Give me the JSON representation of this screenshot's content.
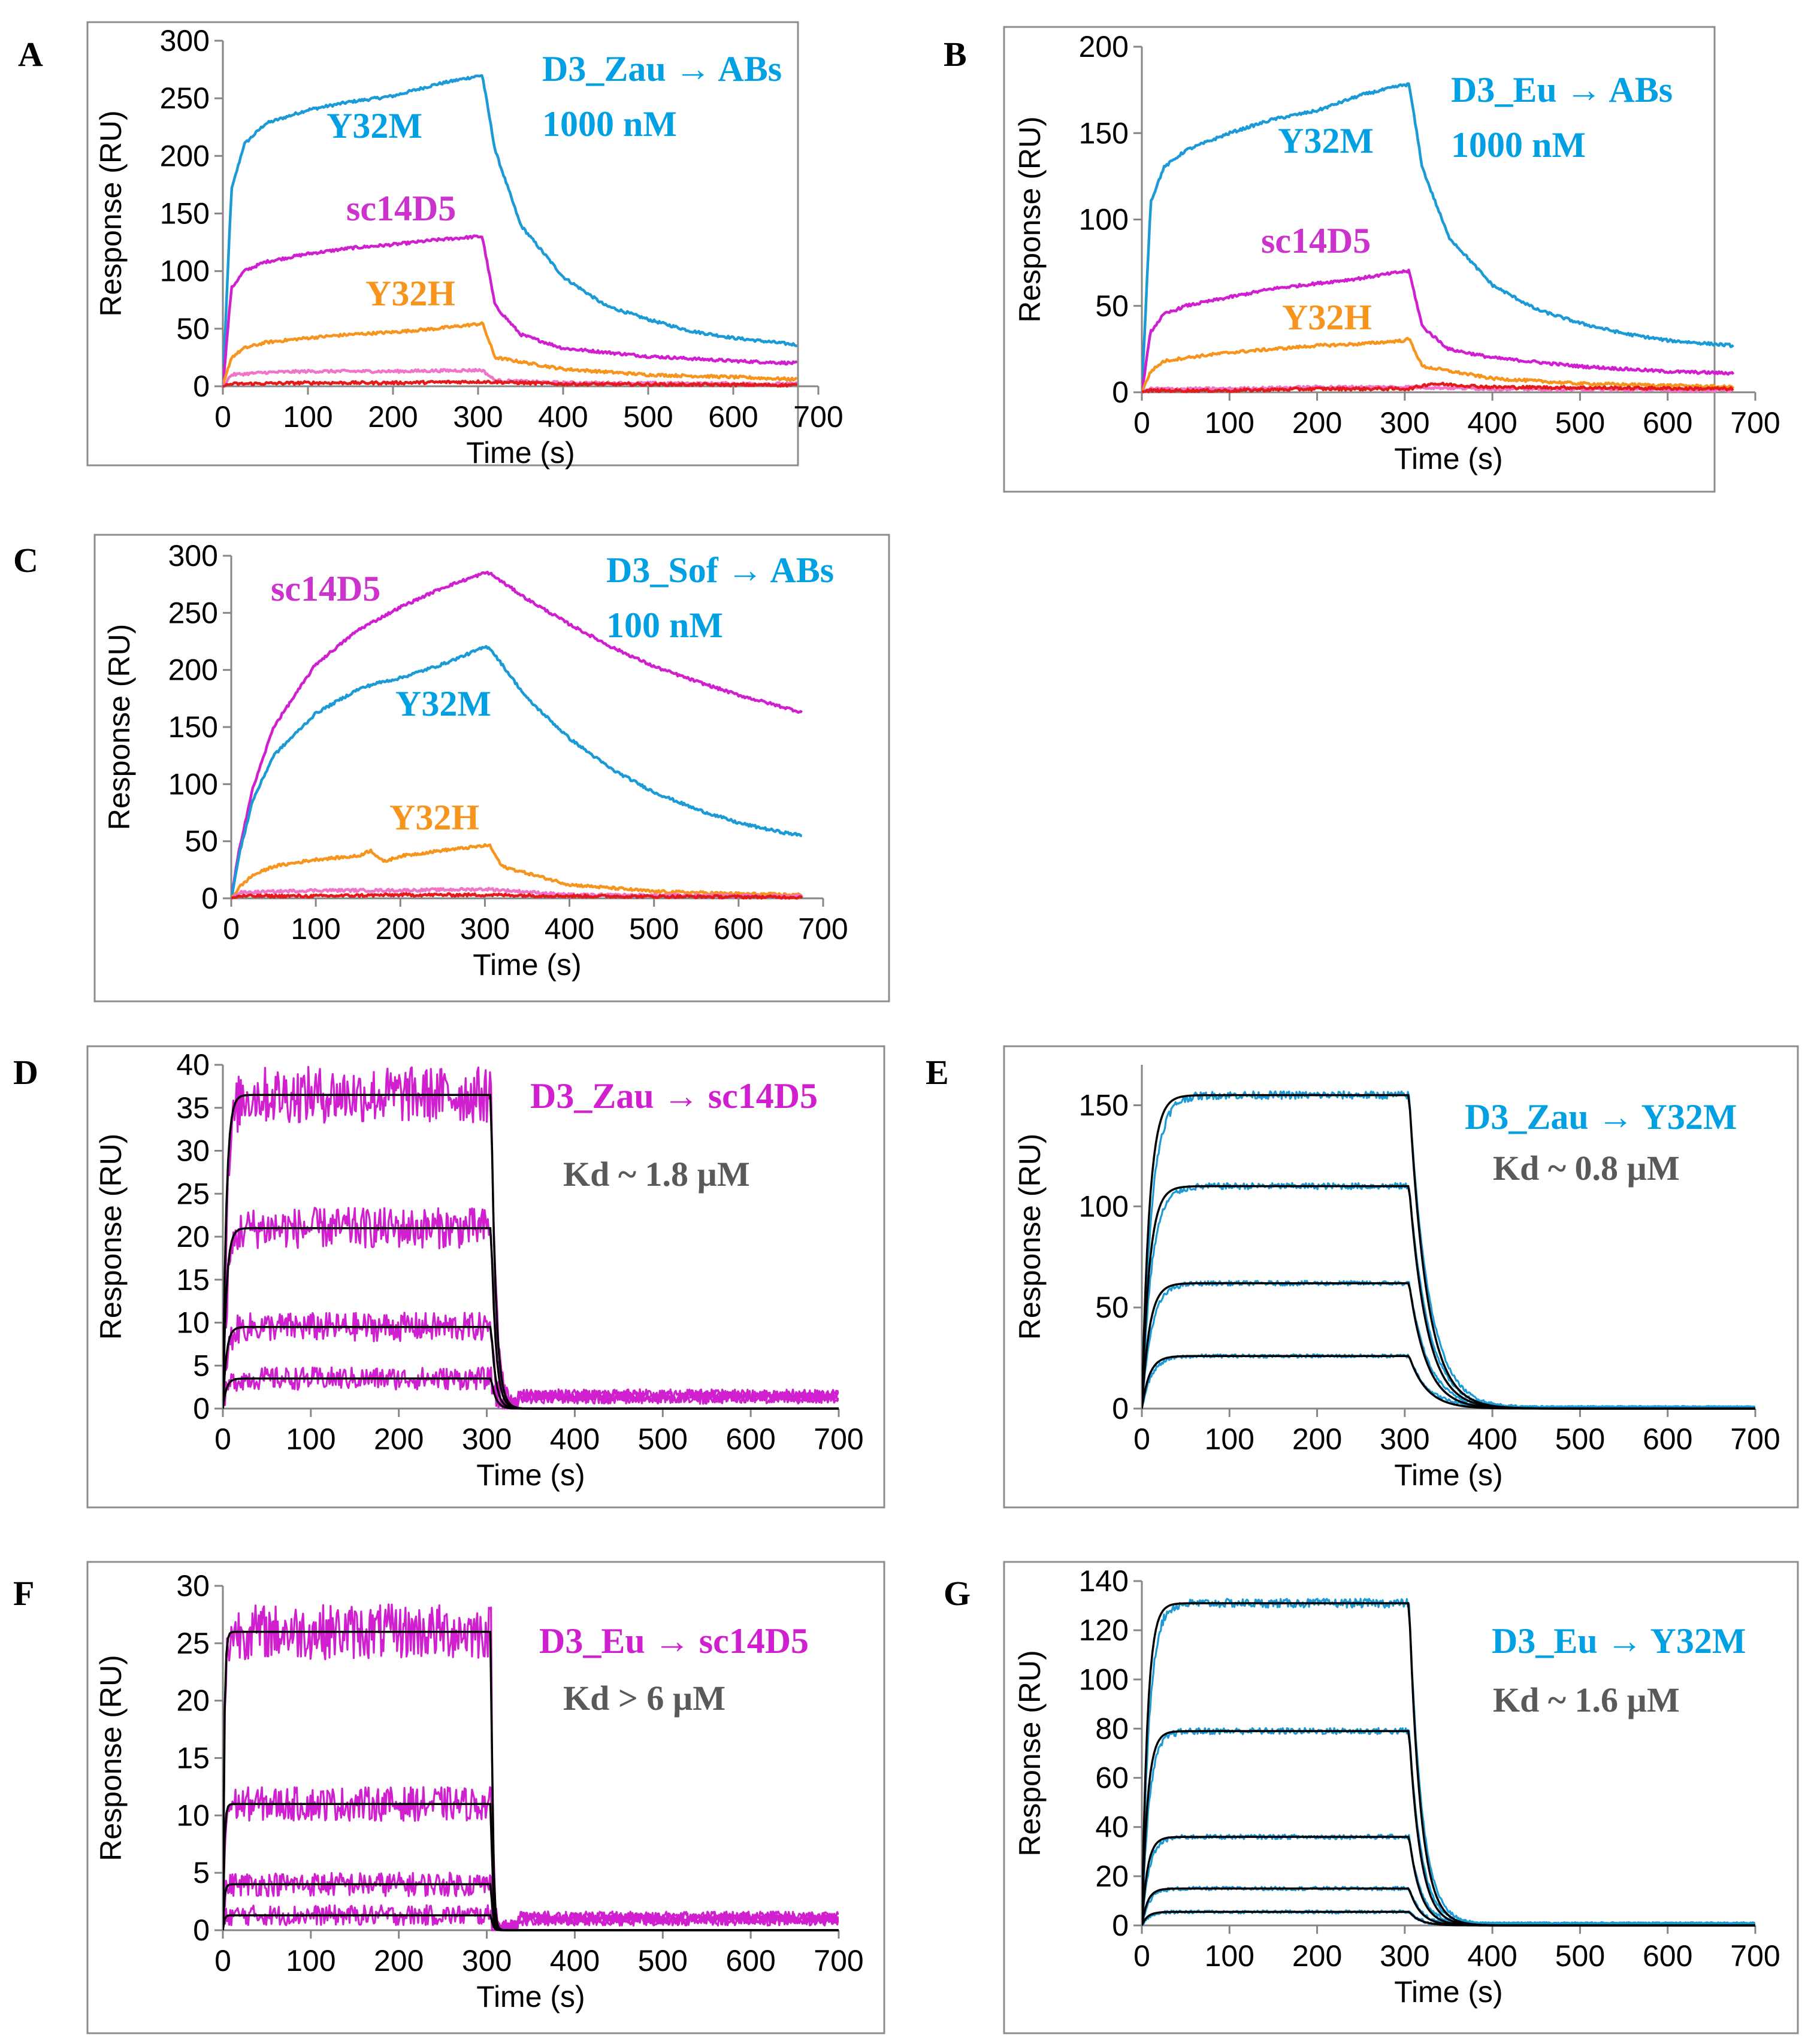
{
  "chart_data": [
    {
      "panel": "A",
      "type": "line",
      "xlabel": "Time (s)",
      "ylabel": "Response (RU)",
      "xlim": [
        0,
        700
      ],
      "ylim": [
        0,
        300
      ],
      "xticks": [
        "0",
        "100",
        "200",
        "300",
        "400",
        "500",
        "600",
        "700"
      ],
      "yticks": [
        "0",
        "50",
        "100",
        "150",
        "200",
        "250",
        "300"
      ],
      "title_lines": [
        "D3_Zau → ABs",
        "1000 nM"
      ],
      "title_color": "#00a0e3",
      "series": [
        {
          "name": "Y32M",
          "color": "#1c9ad6",
          "labeled": true,
          "t_end": 305,
          "t_max": 675,
          "x": [
            0,
            10,
            25,
            50,
            100,
            150,
            200,
            250,
            290,
            305,
            320,
            350,
            400,
            450,
            500,
            550,
            600,
            650,
            675
          ],
          "y": [
            0,
            170,
            210,
            228,
            240,
            247,
            252,
            262,
            268,
            270,
            205,
            140,
            95,
            70,
            58,
            48,
            42,
            38,
            36
          ]
        },
        {
          "name": "sc14D5",
          "color": "#d01fcf",
          "labeled": true,
          "t_end": 305,
          "t_max": 675,
          "x": [
            0,
            10,
            25,
            50,
            100,
            150,
            200,
            250,
            300,
            305,
            320,
            350,
            400,
            500,
            600,
            675
          ],
          "y": [
            0,
            85,
            100,
            108,
            115,
            120,
            123,
            127,
            130,
            130,
            70,
            45,
            33,
            26,
            22,
            20
          ]
        },
        {
          "name": "Y32H",
          "color": "#f7941d",
          "labeled": true,
          "t_end": 305,
          "t_max": 675,
          "x": [
            0,
            10,
            25,
            50,
            100,
            150,
            200,
            250,
            300,
            305,
            320,
            400,
            500,
            600,
            675
          ],
          "y": [
            0,
            25,
            33,
            38,
            42,
            45,
            47,
            50,
            54,
            55,
            25,
            15,
            10,
            8,
            6
          ]
        },
        {
          "name": "control-1",
          "color": "#f075c8",
          "labeled": false,
          "t_end": 305,
          "t_max": 675,
          "x": [
            0,
            10,
            50,
            100,
            200,
            300,
            305,
            320,
            400,
            675
          ],
          "y": [
            0,
            10,
            12,
            13,
            13,
            14,
            14,
            5,
            3,
            2
          ]
        },
        {
          "name": "control-2",
          "color": "#e41a1c",
          "labeled": false,
          "t_end": 305,
          "t_max": 675,
          "x": [
            0,
            10,
            100,
            200,
            300,
            305,
            400,
            675
          ],
          "y": [
            0,
            2,
            3,
            3,
            4,
            4,
            2,
            1
          ]
        }
      ],
      "series_labels": [
        {
          "text": "Y32M",
          "color": "#00a0e3"
        },
        {
          "text": "sc14D5",
          "color": "#cc33cc"
        },
        {
          "text": "Y32H",
          "color": "#f7941d"
        }
      ]
    },
    {
      "panel": "B",
      "type": "line",
      "xlabel": "Time (s)",
      "ylabel": "Response (RU)",
      "xlim": [
        0,
        700
      ],
      "ylim": [
        0,
        200
      ],
      "xticks": [
        "0",
        "100",
        "200",
        "300",
        "400",
        "500",
        "600",
        "700"
      ],
      "yticks": [
        "0",
        "50",
        "100",
        "150",
        "200"
      ],
      "title_lines": [
        "D3_Eu → ABs",
        "1000 nM"
      ],
      "title_color": "#00a0e3",
      "series": [
        {
          "name": "Y32M",
          "color": "#1c9ad6",
          "labeled": true,
          "t_end": 305,
          "t_max": 675,
          "x": [
            0,
            10,
            25,
            50,
            100,
            150,
            200,
            250,
            300,
            305,
            320,
            350,
            400,
            450,
            500,
            550,
            600,
            675
          ],
          "y": [
            0,
            110,
            130,
            140,
            150,
            158,
            163,
            172,
            178,
            178,
            130,
            90,
            62,
            48,
            40,
            34,
            30,
            27
          ]
        },
        {
          "name": "sc14D5",
          "color": "#d01fcf",
          "labeled": true,
          "t_end": 305,
          "t_max": 675,
          "x": [
            0,
            10,
            25,
            50,
            100,
            150,
            200,
            250,
            300,
            305,
            320,
            350,
            400,
            500,
            600,
            675
          ],
          "y": [
            0,
            35,
            45,
            50,
            55,
            60,
            63,
            66,
            70,
            70,
            38,
            25,
            20,
            15,
            12,
            11
          ]
        },
        {
          "name": "Y32H",
          "color": "#f7941d",
          "labeled": true,
          "t_end": 305,
          "t_max": 675,
          "x": [
            0,
            10,
            25,
            50,
            100,
            150,
            200,
            250,
            300,
            305,
            320,
            400,
            500,
            600,
            675
          ],
          "y": [
            0,
            12,
            18,
            20,
            23,
            25,
            27,
            28,
            30,
            31,
            15,
            8,
            5,
            4,
            3
          ]
        },
        {
          "name": "control-1",
          "color": "#f075c8",
          "labeled": false,
          "t_end": 305,
          "t_max": 675,
          "x": [
            0,
            10,
            100,
            200,
            300,
            305,
            400,
            675
          ],
          "y": [
            0,
            2,
            2,
            3,
            3,
            3,
            2,
            1
          ]
        },
        {
          "name": "control-2",
          "color": "#e41a1c",
          "labeled": false,
          "t_end": 305,
          "t_max": 675,
          "x": [
            0,
            10,
            100,
            200,
            300,
            305,
            330,
            400,
            675
          ],
          "y": [
            0,
            1,
            1,
            2,
            2,
            2,
            5,
            3,
            2
          ]
        }
      ],
      "series_labels": [
        {
          "text": "Y32M",
          "color": "#00a0e3"
        },
        {
          "text": "sc14D5",
          "color": "#cc33cc"
        },
        {
          "text": "Y32H",
          "color": "#f7941d"
        }
      ]
    },
    {
      "panel": "C",
      "type": "line",
      "xlabel": "Time (s)",
      "ylabel": "Response (RU)",
      "xlim": [
        0,
        700
      ],
      "ylim": [
        0,
        300
      ],
      "xticks": [
        "0",
        "100",
        "200",
        "300",
        "400",
        "500",
        "600",
        "700"
      ],
      "yticks": [
        "0",
        "50",
        "100",
        "150",
        "200",
        "250",
        "300"
      ],
      "title_lines": [
        "D3_Sof → ABs",
        "100 nM"
      ],
      "title_color": "#00a0e3",
      "series": [
        {
          "name": "sc14D5",
          "color": "#d01fcf",
          "labeled": true,
          "t_end": 305,
          "t_max": 675,
          "x": [
            0,
            10,
            25,
            50,
            100,
            150,
            200,
            250,
            300,
            305,
            350,
            400,
            450,
            500,
            550,
            600,
            650,
            675
          ],
          "y": [
            0,
            45,
            95,
            150,
            205,
            235,
            255,
            272,
            285,
            285,
            262,
            240,
            220,
            203,
            190,
            178,
            168,
            163
          ]
        },
        {
          "name": "Y32M",
          "color": "#1c9ad6",
          "labeled": true,
          "t_end": 305,
          "t_max": 675,
          "x": [
            0,
            10,
            25,
            50,
            100,
            150,
            170,
            200,
            250,
            300,
            305,
            350,
            400,
            450,
            500,
            550,
            600,
            650,
            675
          ],
          "y": [
            0,
            40,
            85,
            125,
            162,
            183,
            188,
            193,
            205,
            220,
            220,
            175,
            140,
            113,
            93,
            78,
            66,
            58,
            55
          ]
        },
        {
          "name": "Y32H",
          "color": "#f7941d",
          "labeled": true,
          "t_end": 305,
          "t_max": 675,
          "x": [
            0,
            10,
            25,
            50,
            100,
            150,
            165,
            180,
            200,
            250,
            300,
            305,
            320,
            400,
            500,
            600,
            675
          ],
          "y": [
            0,
            10,
            20,
            28,
            34,
            37,
            42,
            32,
            37,
            42,
            46,
            47,
            28,
            12,
            6,
            4,
            3
          ]
        },
        {
          "name": "control-1",
          "color": "#f075c8",
          "labeled": false,
          "t_end": 305,
          "t_max": 675,
          "x": [
            0,
            10,
            100,
            200,
            300,
            305,
            400,
            675
          ],
          "y": [
            0,
            5,
            7,
            7,
            8,
            8,
            3,
            2
          ]
        },
        {
          "name": "control-2",
          "color": "#e41a1c",
          "labeled": false,
          "t_end": 305,
          "t_max": 675,
          "x": [
            0,
            10,
            100,
            200,
            300,
            305,
            400,
            675
          ],
          "y": [
            0,
            2,
            2,
            3,
            3,
            3,
            2,
            1
          ]
        }
      ],
      "series_labels": [
        {
          "text": "sc14D5",
          "color": "#cc33cc"
        },
        {
          "text": "Y32M",
          "color": "#00a0e3"
        },
        {
          "text": "Y32H",
          "color": "#f7941d"
        }
      ]
    },
    {
      "panel": "D",
      "type": "line",
      "xlabel": "Time (s)",
      "ylabel": "Response (RU)",
      "xlim": [
        0,
        700
      ],
      "ylim": [
        0,
        40
      ],
      "xticks": [
        "0",
        "100",
        "200",
        "300",
        "400",
        "500",
        "600",
        "700"
      ],
      "yticks": [
        "0",
        "5",
        "10",
        "15",
        "20",
        "25",
        "30",
        "35",
        "40"
      ],
      "title_lines": [
        "D3_Zau → sc14D5"
      ],
      "title_color": "#d01fcf",
      "kd_text": "Kd ~ 1.8 µM",
      "series_color": "#d01fcf",
      "fit_color": "#000000",
      "t_end": 305,
      "t_max": 700,
      "kon_rate": 0.2,
      "koff_rate": 0.18,
      "noise_amp": 2.2,
      "steady_states": [
        36.5,
        21,
        9.5,
        3.5
      ]
    },
    {
      "panel": "E",
      "type": "line",
      "xlabel": "Time (s)",
      "ylabel": "Response (RU)",
      "xlim": [
        0,
        700
      ],
      "ylim": [
        0,
        170
      ],
      "xticks": [
        "0",
        "100",
        "200",
        "300",
        "400",
        "500",
        "600",
        "700"
      ],
      "yticks": [
        "0",
        "50",
        "100",
        "150"
      ],
      "title_lines": [
        "D3_Zau → Y32M"
      ],
      "title_color": "#00a0e3",
      "kd_text": "Kd ~ 0.8 µM",
      "series_color": "#1c9ad6",
      "fit_color": "#000000",
      "t_end": 305,
      "t_max": 700,
      "kon_rate": 0.09,
      "koff_rate": 0.045,
      "noise_amp": 1.3,
      "steady_states": [
        155,
        110,
        62,
        26
      ]
    },
    {
      "panel": "F",
      "type": "line",
      "xlabel": "Time (s)",
      "ylabel": "Response (RU)",
      "xlim": [
        0,
        700
      ],
      "ylim": [
        0,
        30
      ],
      "xticks": [
        "0",
        "100",
        "200",
        "300",
        "400",
        "500",
        "600",
        "700"
      ],
      "yticks": [
        "0",
        "5",
        "10",
        "15",
        "20",
        "25",
        "30"
      ],
      "title_lines": [
        "D3_Eu → sc14D5"
      ],
      "title_color": "#d01fcf",
      "kd_text": "Kd  > 6 µM",
      "series_color": "#d01fcf",
      "fit_color": "#000000",
      "t_end": 305,
      "t_max": 700,
      "kon_rate": 0.5,
      "koff_rate": 0.5,
      "noise_amp": 1.6,
      "steady_states": [
        26,
        11,
        4,
        1.3
      ]
    },
    {
      "panel": "G",
      "type": "line",
      "xlabel": "Time (s)",
      "ylabel": "Response (RU)",
      "xlim": [
        0,
        700
      ],
      "ylim": [
        0,
        140
      ],
      "xticks": [
        "0",
        "100",
        "200",
        "300",
        "400",
        "500",
        "600",
        "700"
      ],
      "yticks": [
        "0",
        "20",
        "40",
        "60",
        "80",
        "100",
        "120",
        "140"
      ],
      "title_lines": [
        "D3_Eu → Y32M"
      ],
      "title_color": "#00a0e3",
      "kd_text": "Kd ~ 1.6 µM",
      "series_color": "#1c9ad6",
      "fit_color": "#000000",
      "t_end": 305,
      "t_max": 700,
      "kon_rate": 0.12,
      "koff_rate": 0.07,
      "noise_amp": 1.2,
      "steady_states": [
        131,
        79,
        36,
        15,
        5.5
      ]
    }
  ]
}
